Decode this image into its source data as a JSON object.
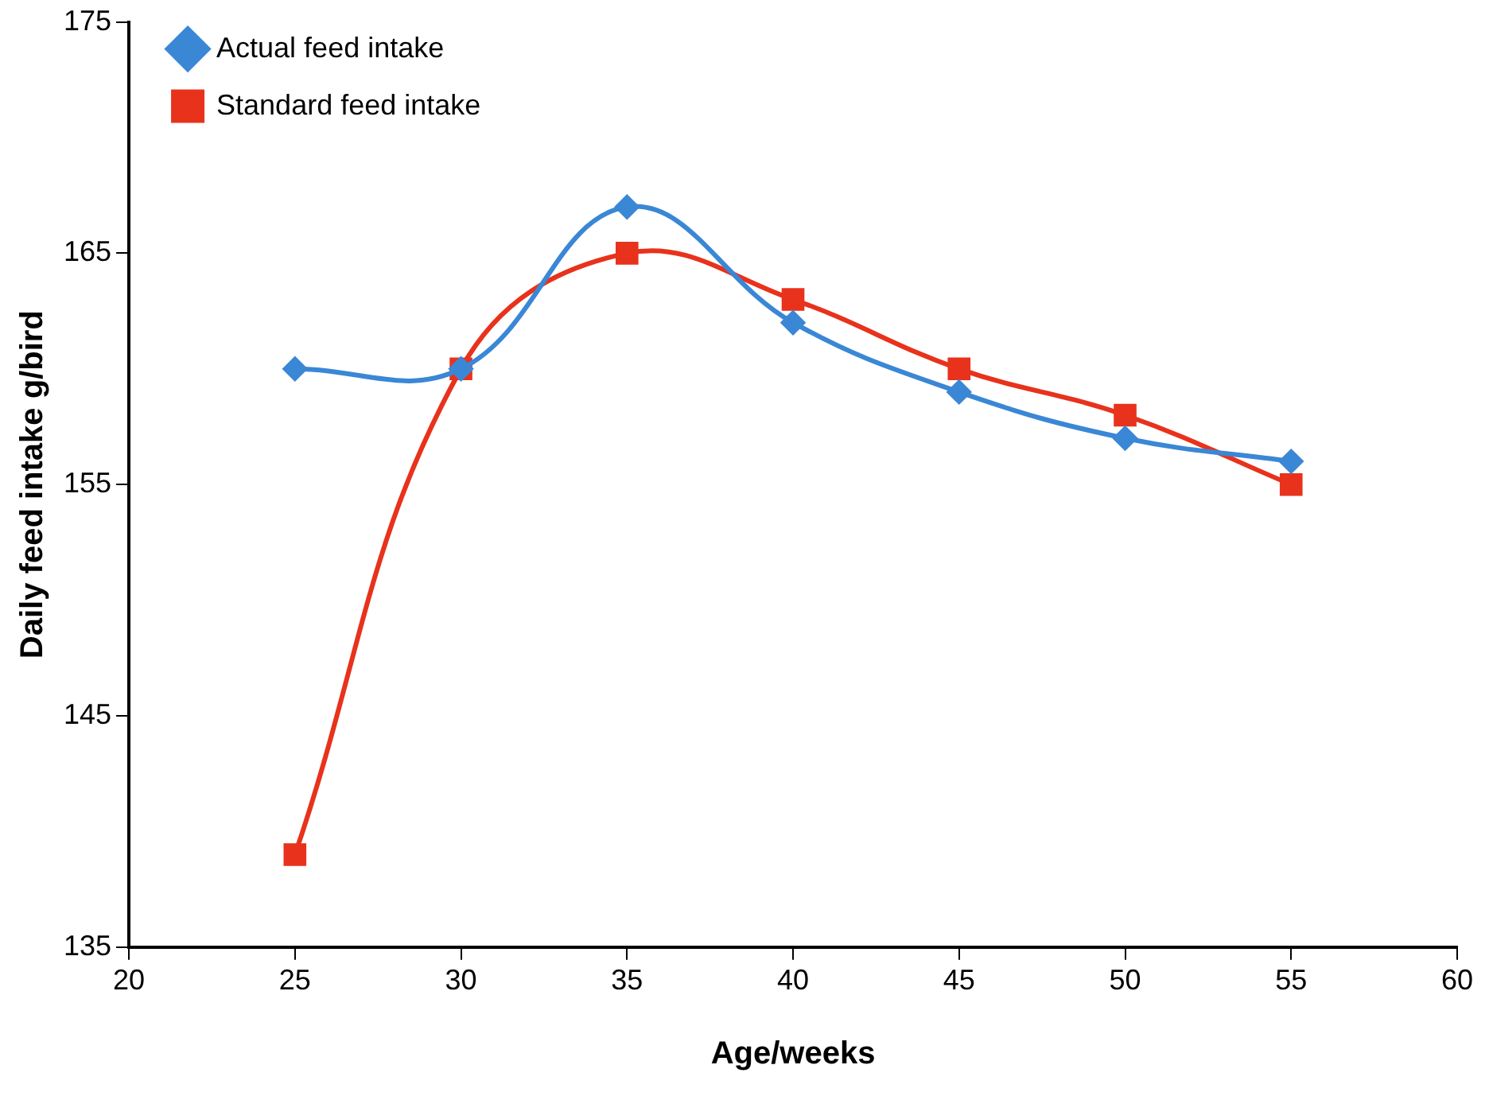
{
  "chart_data": {
    "type": "line",
    "xlabel": "Age/weeks",
    "ylabel": "Daily feed intake g/bird",
    "x": [
      25,
      30,
      35,
      40,
      45,
      50,
      55
    ],
    "series": [
      {
        "name": "Actual feed intake",
        "color": "#3a87d6",
        "marker": "diamond",
        "values": [
          160,
          160,
          167,
          162,
          159,
          157,
          156
        ]
      },
      {
        "name": "Standard feed intake",
        "color": "#e8321c",
        "marker": "square",
        "values": [
          139,
          160,
          165,
          163,
          160,
          158,
          155
        ]
      }
    ],
    "xlim": [
      20,
      60
    ],
    "xticks": [
      20,
      25,
      30,
      35,
      40,
      45,
      50,
      55,
      60
    ],
    "ylim": [
      135,
      175
    ],
    "yticks": [
      135,
      145,
      155,
      165,
      175
    ],
    "grid": false,
    "legend": "top left"
  }
}
